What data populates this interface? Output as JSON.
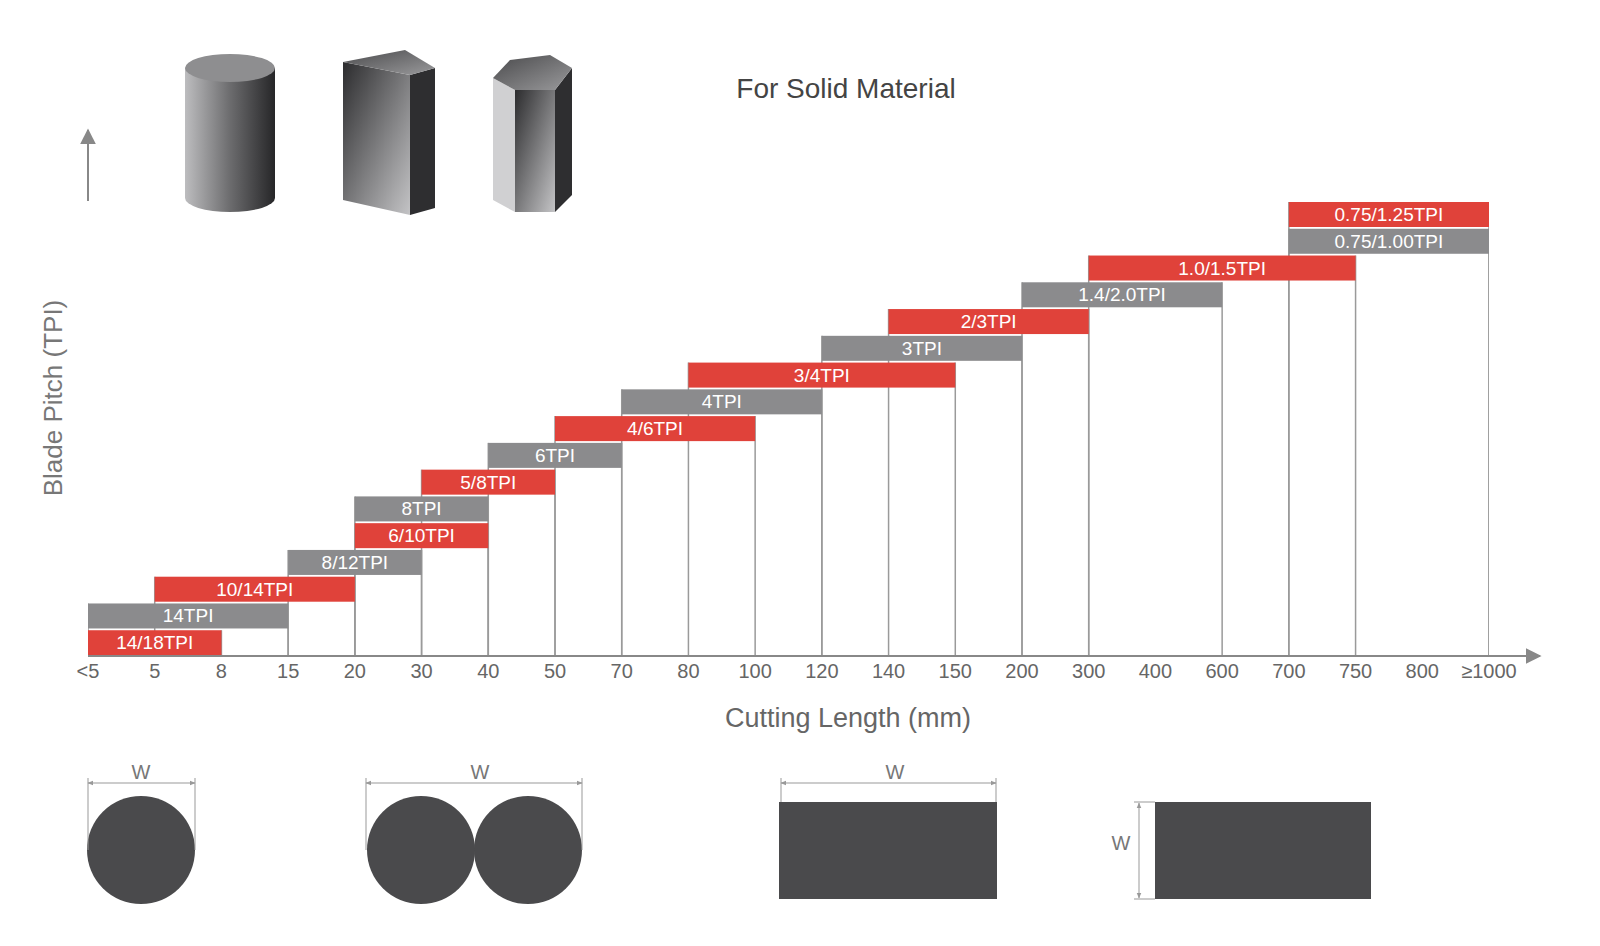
{
  "chart_data": {
    "type": "bar",
    "orientation": "horizontal",
    "title": "For Solid Material",
    "x_label": "Cutting Length (mm)",
    "y_label": "Blade Pitch (TPI)",
    "tick_labels": "x",
    "categories": [
      "<5",
      "5",
      "8",
      "15",
      "20",
      "30",
      "40",
      "50",
      "70",
      "80",
      "100",
      "120",
      "140",
      "150",
      "200",
      "300",
      "400",
      "600",
      "700",
      "750",
      "800",
      "≥1000"
    ],
    "series": [
      {
        "name": "14/18TPI",
        "color": "#e0423a",
        "from": "<5",
        "to": "8"
      },
      {
        "name": "14TPI",
        "color": "#8b8b8d",
        "from": "<5",
        "to": "15"
      },
      {
        "name": "10/14TPI",
        "color": "#e0423a",
        "from": "5",
        "to": "20"
      },
      {
        "name": "8/12TPI",
        "color": "#8b8b8d",
        "from": "15",
        "to": "30"
      },
      {
        "name": "6/10TPI",
        "color": "#e0423a",
        "from": "20",
        "to": "40"
      },
      {
        "name": "8TPI",
        "color": "#8b8b8d",
        "from": "20",
        "to": "40"
      },
      {
        "name": "5/8TPI",
        "color": "#e0423a",
        "from": "30",
        "to": "50"
      },
      {
        "name": "6TPI",
        "color": "#8b8b8d",
        "from": "40",
        "to": "70"
      },
      {
        "name": "4/6TPI",
        "color": "#e0423a",
        "from": "50",
        "to": "100"
      },
      {
        "name": "4TPI",
        "color": "#8b8b8d",
        "from": "70",
        "to": "120"
      },
      {
        "name": "3/4TPI",
        "color": "#e0423a",
        "from": "80",
        "to": "150"
      },
      {
        "name": "3TPI",
        "color": "#8b8b8d",
        "from": "120",
        "to": "200"
      },
      {
        "name": "2/3TPI",
        "color": "#e0423a",
        "from": "140",
        "to": "300"
      },
      {
        "name": "1.4/2.0TPI",
        "color": "#8b8b8d",
        "from": "200",
        "to": "600"
      },
      {
        "name": "1.0/1.5TPI",
        "color": "#e0423a",
        "from": "300",
        "to": "750"
      },
      {
        "name": "0.75/1.00TPI",
        "color": "#8b8b8d",
        "from": "700",
        "to": "≥1000"
      },
      {
        "name": "0.75/1.25TPI",
        "color": "#e0423a",
        "from": "700",
        "to": "≥1000"
      }
    ]
  },
  "cross_section_labels": [
    "W",
    "W",
    "W",
    "W"
  ]
}
